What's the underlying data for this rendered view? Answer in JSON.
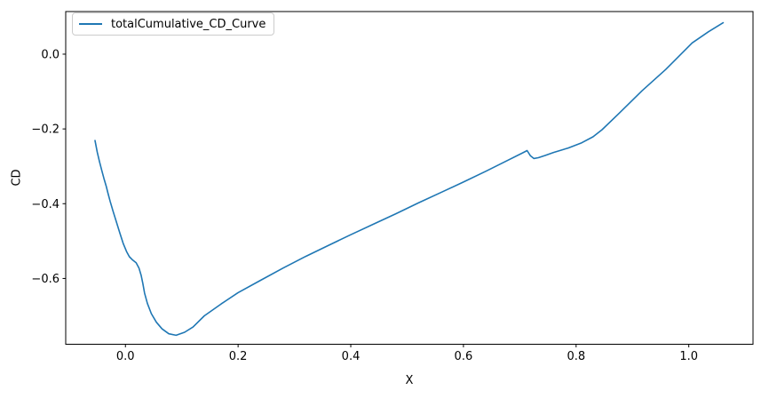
{
  "chart_data": {
    "type": "line",
    "title": "",
    "xlabel": "X",
    "ylabel": "CD",
    "grid": false,
    "legend": {
      "position": "upper left",
      "entries": [
        "totalCumulative_CD_Curve"
      ]
    },
    "line_color": "#1f77b4",
    "background_color": "#ffffff",
    "spine_color": "#000000",
    "xlim": [
      -0.106,
      1.114
    ],
    "ylim": [
      -0.776,
      0.114
    ],
    "xticks": [
      0.0,
      0.2,
      0.4,
      0.6,
      0.8,
      1.0
    ],
    "yticks": [
      -0.6,
      -0.4,
      -0.2,
      0.0
    ],
    "series": [
      {
        "name": "totalCumulative_CD_Curve",
        "x": [
          -0.054,
          -0.05,
          -0.046,
          -0.042,
          -0.038,
          -0.034,
          -0.031,
          -0.027,
          -0.022,
          -0.016,
          -0.01,
          -0.004,
          0.002,
          0.007,
          0.013,
          0.019,
          0.024,
          0.028,
          0.031,
          0.034,
          0.039,
          0.046,
          0.055,
          0.065,
          0.077,
          0.09,
          0.105,
          0.12,
          0.14,
          0.17,
          0.2,
          0.24,
          0.28,
          0.32,
          0.36,
          0.4,
          0.44,
          0.48,
          0.52,
          0.56,
          0.6,
          0.64,
          0.676,
          0.705,
          0.713,
          0.719,
          0.725,
          0.733,
          0.745,
          0.76,
          0.786,
          0.81,
          0.83,
          0.846,
          0.875,
          0.917,
          0.959,
          1.006,
          1.035,
          1.061
        ],
        "y": [
          -0.231,
          -0.262,
          -0.288,
          -0.311,
          -0.333,
          -0.354,
          -0.372,
          -0.394,
          -0.42,
          -0.449,
          -0.478,
          -0.506,
          -0.528,
          -0.542,
          -0.551,
          -0.558,
          -0.572,
          -0.592,
          -0.614,
          -0.639,
          -0.667,
          -0.694,
          -0.717,
          -0.735,
          -0.748,
          -0.752,
          -0.744,
          -0.73,
          -0.7,
          -0.668,
          -0.638,
          -0.605,
          -0.572,
          -0.541,
          -0.512,
          -0.483,
          -0.455,
          -0.427,
          -0.398,
          -0.37,
          -0.342,
          -0.313,
          -0.286,
          -0.264,
          -0.258,
          -0.272,
          -0.279,
          -0.277,
          -0.271,
          -0.263,
          -0.251,
          -0.237,
          -0.221,
          -0.202,
          -0.16,
          -0.098,
          -0.041,
          0.03,
          0.06,
          0.084
        ]
      }
    ]
  }
}
